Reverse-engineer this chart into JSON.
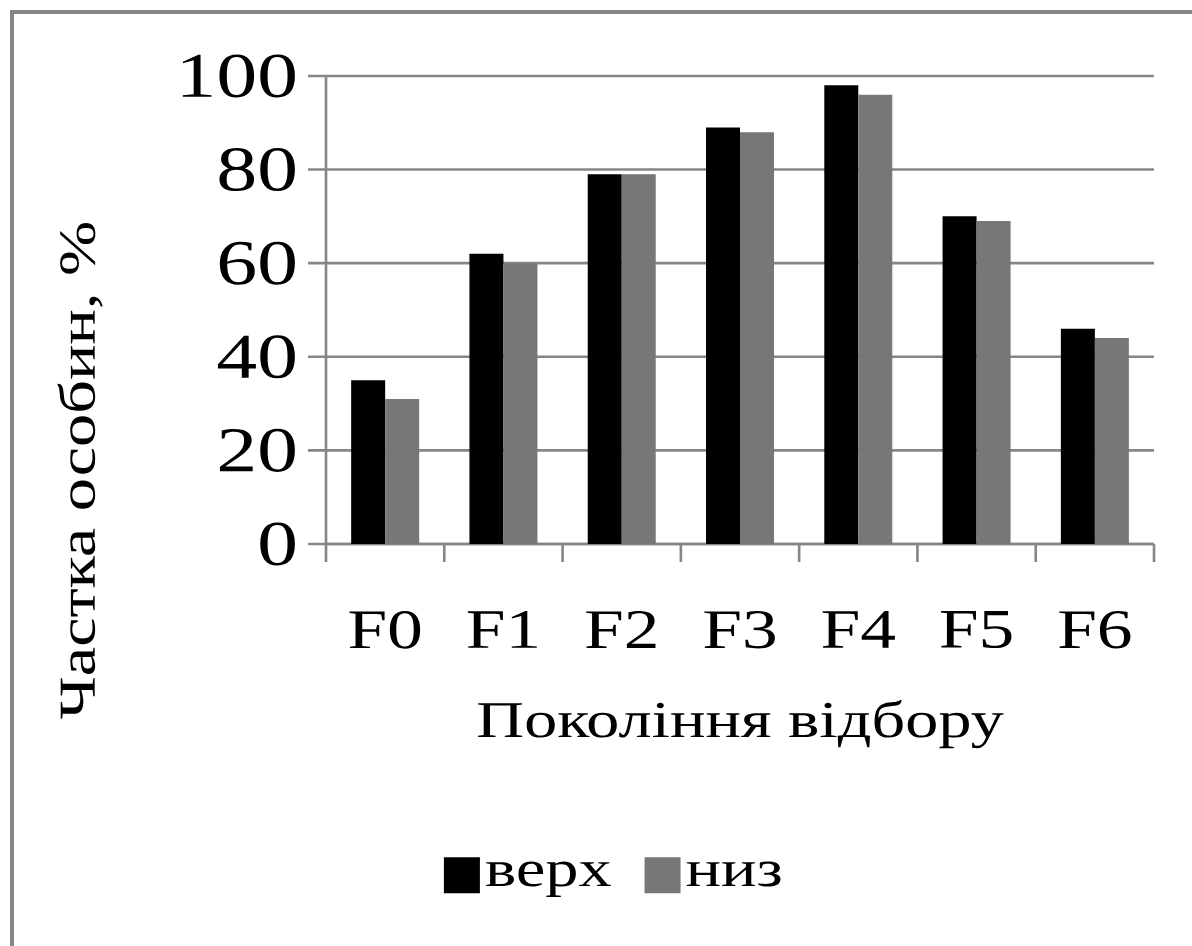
{
  "chart_data": {
    "type": "bar",
    "xlabel": "Покоління відбору",
    "ylabel": "Частка особин, %",
    "categories": [
      "F0",
      "F1",
      "F2",
      "F3",
      "F4",
      "F5",
      "F6"
    ],
    "series": [
      {
        "name": "верх",
        "color": "#000000",
        "values": [
          35,
          62,
          79,
          89,
          98,
          70,
          46
        ]
      },
      {
        "name": "низ",
        "color": "#777777",
        "values": [
          31,
          60,
          79,
          88,
          96,
          69,
          44
        ]
      }
    ],
    "ylim": [
      0,
      100
    ],
    "yticks": [
      0,
      20,
      40,
      60,
      80,
      100
    ],
    "grid": "y",
    "legend": "bottom"
  }
}
